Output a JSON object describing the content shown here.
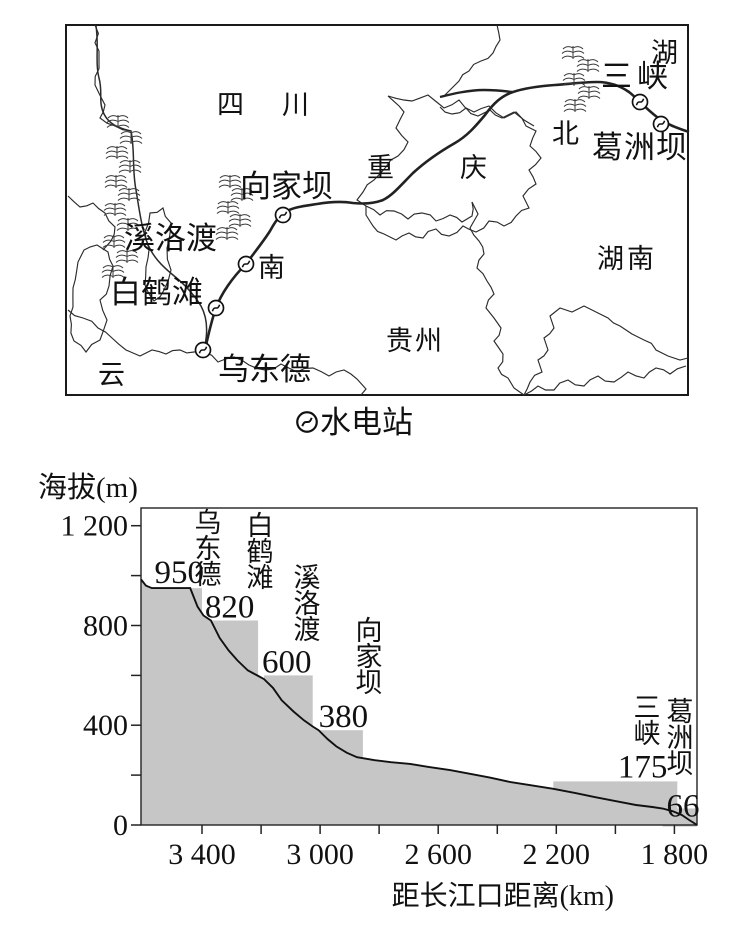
{
  "figure": {
    "map": {
      "provinces": {
        "sichuan": "四川",
        "chongqing": "重庆",
        "hubei_hu": "湖",
        "hubei_bei": "北",
        "hunan": "湖南",
        "guizhou": "贵州",
        "yunnan_yun": "云",
        "yunnan_nan": "南"
      },
      "station_labels": {
        "xiangjiaba": "向家坝",
        "xiluodu": "溪洛渡",
        "baihetan": "白鹤滩",
        "wudongde": "乌东德",
        "sanxia": "三峡",
        "gezhouba": "葛洲坝"
      },
      "legend": {
        "symbol": "hydropower-station-icon",
        "label": "水电站"
      }
    }
  },
  "chart_data": {
    "type": "area",
    "ylabel": "海拔(m)",
    "xlabel": "距长江口距离(km)",
    "x_axis_reversed": true,
    "xlim_km": [
      3610,
      1720
    ],
    "ylim_m": [
      0,
      1270
    ],
    "grid": false,
    "x_ticks": [
      {
        "km": 3400,
        "label": "3 400"
      },
      {
        "km": 3200,
        "label": ""
      },
      {
        "km": 3000,
        "label": "3 000"
      },
      {
        "km": 2800,
        "label": ""
      },
      {
        "km": 2600,
        "label": "2 600"
      },
      {
        "km": 2400,
        "label": ""
      },
      {
        "km": 2200,
        "label": "2 200"
      },
      {
        "km": 2000,
        "label": ""
      },
      {
        "km": 1800,
        "label": "1 800"
      }
    ],
    "y_ticks": [
      {
        "m": 0,
        "label": "0"
      },
      {
        "m": 200,
        "label": ""
      },
      {
        "m": 400,
        "label": "400"
      },
      {
        "m": 600,
        "label": ""
      },
      {
        "m": 800,
        "label": "800"
      },
      {
        "m": 1000,
        "label": ""
      },
      {
        "m": 1200,
        "label": "1 200"
      }
    ],
    "stations": [
      {
        "name": "乌东德",
        "elevation_m": 950,
        "dam_km": 3400,
        "reservoir_reach_km": 3570
      },
      {
        "name": "白鹤滩",
        "elevation_m": 820,
        "dam_km": 3210,
        "reservoir_reach_km": 3370
      },
      {
        "name": "溪洛渡",
        "elevation_m": 600,
        "dam_km": 3025,
        "reservoir_reach_km": 3190
      },
      {
        "name": "向家坝",
        "elevation_m": 380,
        "dam_km": 2855,
        "reservoir_reach_km": 3005
      },
      {
        "name": "三峡",
        "elevation_m": 175,
        "dam_km": 1790,
        "reservoir_reach_km": 2210
      },
      {
        "name": "葛洲坝",
        "elevation_m": 66,
        "dam_km": 1725,
        "reservoir_reach_km": 1840
      }
    ],
    "riverbed_profile_km_m": [
      [
        3610,
        985
      ],
      [
        3590,
        960
      ],
      [
        3570,
        950
      ],
      [
        3440,
        950
      ],
      [
        3415,
        875
      ],
      [
        3395,
        840
      ],
      [
        3370,
        820
      ],
      [
        3340,
        750
      ],
      [
        3310,
        700
      ],
      [
        3280,
        660
      ],
      [
        3245,
        620
      ],
      [
        3210,
        598
      ],
      [
        3190,
        585
      ],
      [
        3160,
        550
      ],
      [
        3130,
        500
      ],
      [
        3090,
        455
      ],
      [
        3055,
        420
      ],
      [
        3025,
        395
      ],
      [
        3005,
        380
      ],
      [
        2975,
        345
      ],
      [
        2945,
        315
      ],
      [
        2910,
        290
      ],
      [
        2875,
        272
      ],
      [
        2855,
        268
      ],
      [
        2815,
        260
      ],
      [
        2760,
        252
      ],
      [
        2695,
        245
      ],
      [
        2630,
        232
      ],
      [
        2560,
        220
      ],
      [
        2490,
        205
      ],
      [
        2425,
        190
      ],
      [
        2355,
        172
      ],
      [
        2290,
        160
      ],
      [
        2210,
        145
      ],
      [
        2135,
        128
      ],
      [
        2070,
        112
      ],
      [
        2000,
        96
      ],
      [
        1930,
        80
      ],
      [
        1875,
        72
      ],
      [
        1840,
        66
      ],
      [
        1805,
        55
      ],
      [
        1775,
        40
      ],
      [
        1750,
        20
      ],
      [
        1723,
        0
      ]
    ],
    "legend_note": "⊗ = 水电站 (hydropower station)"
  }
}
